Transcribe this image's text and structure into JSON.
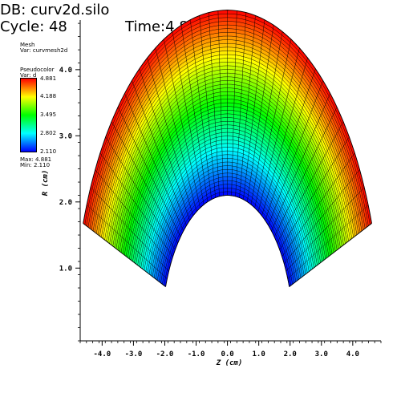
{
  "header": {
    "db_line": "DB: curv2d.silo",
    "cycle_line": "Cycle: 48",
    "time_line": "Time:4.8"
  },
  "mesh_legend": {
    "title": "Mesh",
    "var_line": "Var: curvmesh2d"
  },
  "pseudocolor_legend": {
    "title": "Pseudocolor",
    "var_line": "Var: d",
    "ticks": [
      "4.881",
      "4.188",
      "3.495",
      "2.802",
      "2.110"
    ],
    "max_line": "Max: 4.881",
    "min_line": "Min: 2.110",
    "colors": [
      "#ff0000",
      "#ffff00",
      "#00ff00",
      "#00ffff",
      "#0000ff"
    ]
  },
  "chart_data": {
    "type": "pseudocolor-mesh",
    "xlabel": "Z (cm)",
    "ylabel": "R (cm)",
    "x_ticks": [
      -4.0,
      -3.0,
      -2.0,
      -1.0,
      0.0,
      1.0,
      2.0,
      3.0,
      4.0
    ],
    "x_tick_labels": [
      "-4.0",
      "-3.0",
      "-2.0",
      "-1.0",
      "0.0",
      "1.0",
      "2.0",
      "3.0",
      "4.0"
    ],
    "y_ticks": [
      1.0,
      2.0,
      3.0,
      4.0
    ],
    "y_tick_labels": [
      "1.0",
      "2.0",
      "3.0",
      "4.0"
    ],
    "xlim": [
      -4.7,
      4.9
    ],
    "ylim": [
      -0.1,
      4.75
    ],
    "variable": "d",
    "value_range": [
      2.11,
      4.881
    ],
    "inner_radius": 2.1,
    "outer_radius": 4.9,
    "theta_range_deg": [
      20,
      160
    ],
    "radial_divisions": 50,
    "angular_divisions": 40
  }
}
